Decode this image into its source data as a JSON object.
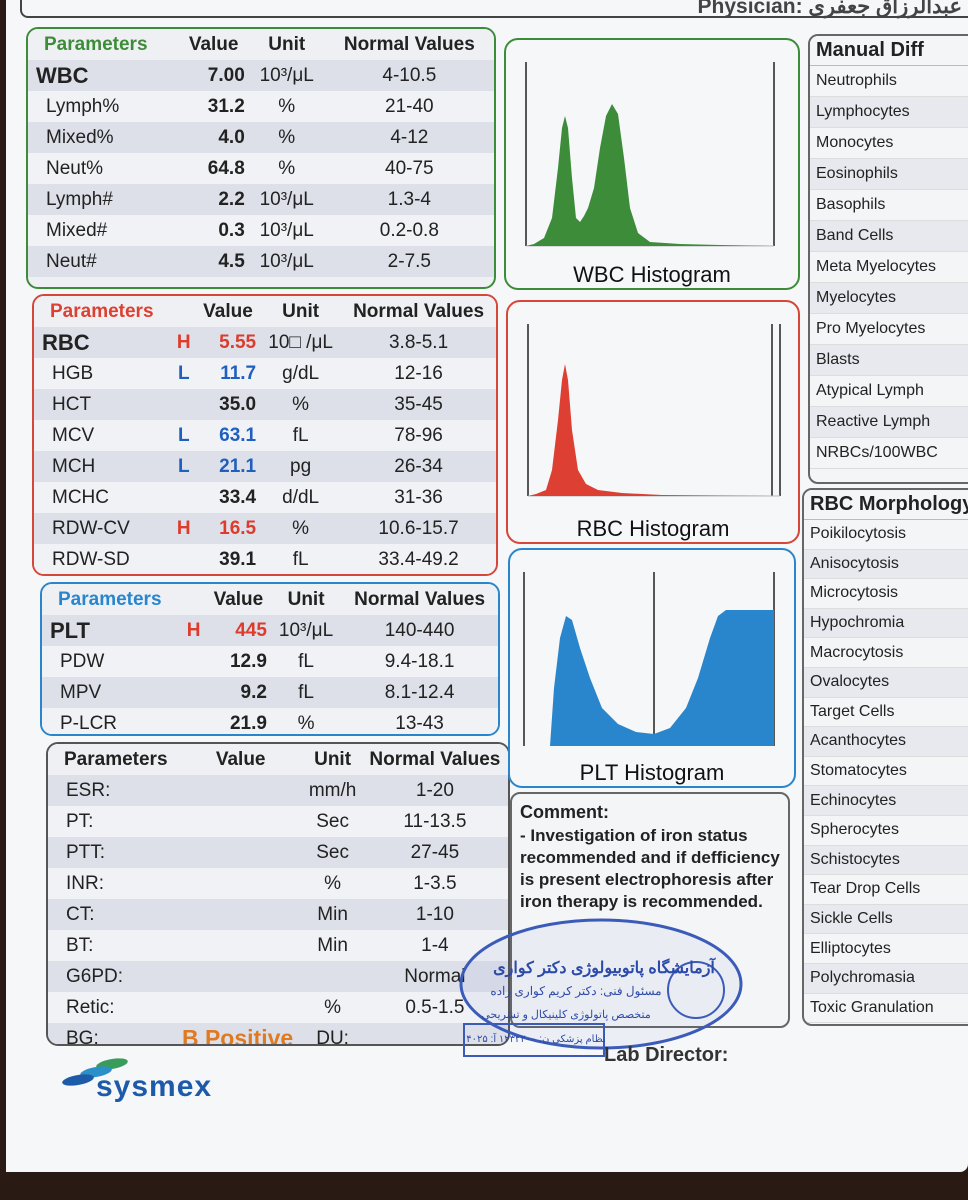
{
  "header": {
    "physician": "Physician: عبدالرزاق جعفری"
  },
  "wbc": {
    "headers": [
      "Parameters",
      "Value",
      "Unit",
      "Normal Values"
    ],
    "rows": [
      {
        "name": "WBC",
        "flag": "",
        "value": "7.00",
        "unit": "10³/μL",
        "normal": "4-10.5"
      },
      {
        "name": "Lymph%",
        "flag": "",
        "value": "31.2",
        "unit": "%",
        "normal": "21-40"
      },
      {
        "name": "Mixed%",
        "flag": "",
        "value": "4.0",
        "unit": "%",
        "normal": "4-12"
      },
      {
        "name": "Neut%",
        "flag": "",
        "value": "64.8",
        "unit": "%",
        "normal": "40-75"
      },
      {
        "name": "Lymph#",
        "flag": "",
        "value": "2.2",
        "unit": "10³/μL",
        "normal": "1.3-4"
      },
      {
        "name": "Mixed#",
        "flag": "",
        "value": "0.3",
        "unit": "10³/μL",
        "normal": "0.2-0.8"
      },
      {
        "name": "Neut#",
        "flag": "",
        "value": "4.5",
        "unit": "10³/μL",
        "normal": "2-7.5"
      }
    ]
  },
  "rbc": {
    "headers": [
      "Parameters",
      "Value",
      "Unit",
      "Normal Values"
    ],
    "rows": [
      {
        "name": "RBC",
        "flag": "H",
        "value": "5.55",
        "unit": "10□ /μL",
        "normal": "3.8-5.1"
      },
      {
        "name": "HGB",
        "flag": "L",
        "value": "11.7",
        "unit": "g/dL",
        "normal": "12-16"
      },
      {
        "name": "HCT",
        "flag": "",
        "value": "35.0",
        "unit": "%",
        "normal": "35-45"
      },
      {
        "name": "MCV",
        "flag": "L",
        "value": "63.1",
        "unit": "fL",
        "normal": "78-96"
      },
      {
        "name": "MCH",
        "flag": "L",
        "value": "21.1",
        "unit": "pg",
        "normal": "26-34"
      },
      {
        "name": "MCHC",
        "flag": "",
        "value": "33.4",
        "unit": "d/dL",
        "normal": "31-36"
      },
      {
        "name": "RDW-CV",
        "flag": "H",
        "value": "16.5",
        "unit": "%",
        "normal": "10.6-15.7"
      },
      {
        "name": "RDW-SD",
        "flag": "",
        "value": "39.1",
        "unit": "fL",
        "normal": "33.4-49.2"
      }
    ]
  },
  "plt": {
    "headers": [
      "Parameters",
      "Value",
      "Unit",
      "Normal Values"
    ],
    "rows": [
      {
        "name": "PLT",
        "flag": "H",
        "value": "445",
        "unit": "10³/μL",
        "normal": "140-440"
      },
      {
        "name": "PDW",
        "flag": "",
        "value": "12.9",
        "unit": "fL",
        "normal": "9.4-18.1"
      },
      {
        "name": "MPV",
        "flag": "",
        "value": "9.2",
        "unit": "fL",
        "normal": "8.1-12.4"
      },
      {
        "name": "P-LCR",
        "flag": "",
        "value": "21.9",
        "unit": "%",
        "normal": "13-43"
      }
    ]
  },
  "coag": {
    "headers": [
      "Parameters",
      "Value",
      "Unit",
      "Normal Values"
    ],
    "rows": [
      {
        "name": "ESR:",
        "value": "",
        "unit": "mm/h",
        "normal": "1-20"
      },
      {
        "name": "PT:",
        "value": "",
        "unit": "Sec",
        "normal": "11-13.5"
      },
      {
        "name": "PTT:",
        "value": "",
        "unit": "Sec",
        "normal": "27-45"
      },
      {
        "name": "INR:",
        "value": "",
        "unit": "%",
        "normal": "1-3.5"
      },
      {
        "name": "CT:",
        "value": "",
        "unit": "Min",
        "normal": "1-10"
      },
      {
        "name": "BT:",
        "value": "",
        "unit": "Min",
        "normal": "1-4"
      },
      {
        "name": "G6PD:",
        "value": "",
        "unit": "",
        "normal": "Normal"
      },
      {
        "name": "Retic:",
        "value": "",
        "unit": "%",
        "normal": "0.5-1.5"
      },
      {
        "name": "BG:",
        "value": "B Positive",
        "unit": "DU:",
        "normal": ""
      }
    ]
  },
  "histograms": {
    "wbc": "WBC Histogram",
    "rbc": "RBC Histogram",
    "plt": "PLT Histogram"
  },
  "manual_diff": {
    "title": "Manual Diff",
    "items": [
      "Neutrophils",
      "Lymphocytes",
      "Monocytes",
      "Eosinophils",
      "Basophils",
      "Band Cells",
      "Meta Myelocytes",
      "Myelocytes",
      "Pro Myelocytes",
      "Blasts",
      "Atypical Lymph",
      "Reactive Lymph",
      "NRBCs/100WBC"
    ]
  },
  "rbc_morph": {
    "title": "RBC Morphology",
    "items": [
      "Poikilocytosis",
      "Anisocytosis",
      "Microcytosis",
      "Hypochromia",
      "Macrocytosis",
      "Ovalocytes",
      "Target Cells",
      "Acanthocytes",
      "Stomatocytes",
      "Echinocytes",
      "Spherocytes",
      "Schistocytes",
      "Tear Drop Cells",
      "Sickle Cells",
      "Elliptocytes",
      "Polychromasia",
      "Toxic Granulation"
    ]
  },
  "comment": {
    "title": "Comment:",
    "body": "- Investigation of iron status recommended and if defficiency is present electrophoresis after iron therapy is recommended."
  },
  "stamp": {
    "line1": "آزمایشگاه پاتوبیولوژی دکتر کواری",
    "line2": "مسئول فنی: دکتر کریم کواری زاده",
    "line3": "متخصص پاتولوژی کلینیکال و تشریحی",
    "line4": "نظام پزشکی ن: ۱۲۳۲۲۰۰ آ: ۴۰۲۵"
  },
  "lab_director": "Lab Director:",
  "brand": "sysmex",
  "colors": {
    "wbc": "#3d8c3a",
    "rbc": "#dd4032",
    "plt": "#2a86cc",
    "high": "#dd3b2b",
    "low": "#1f5fbf",
    "bg_value": "#e07a22"
  }
}
